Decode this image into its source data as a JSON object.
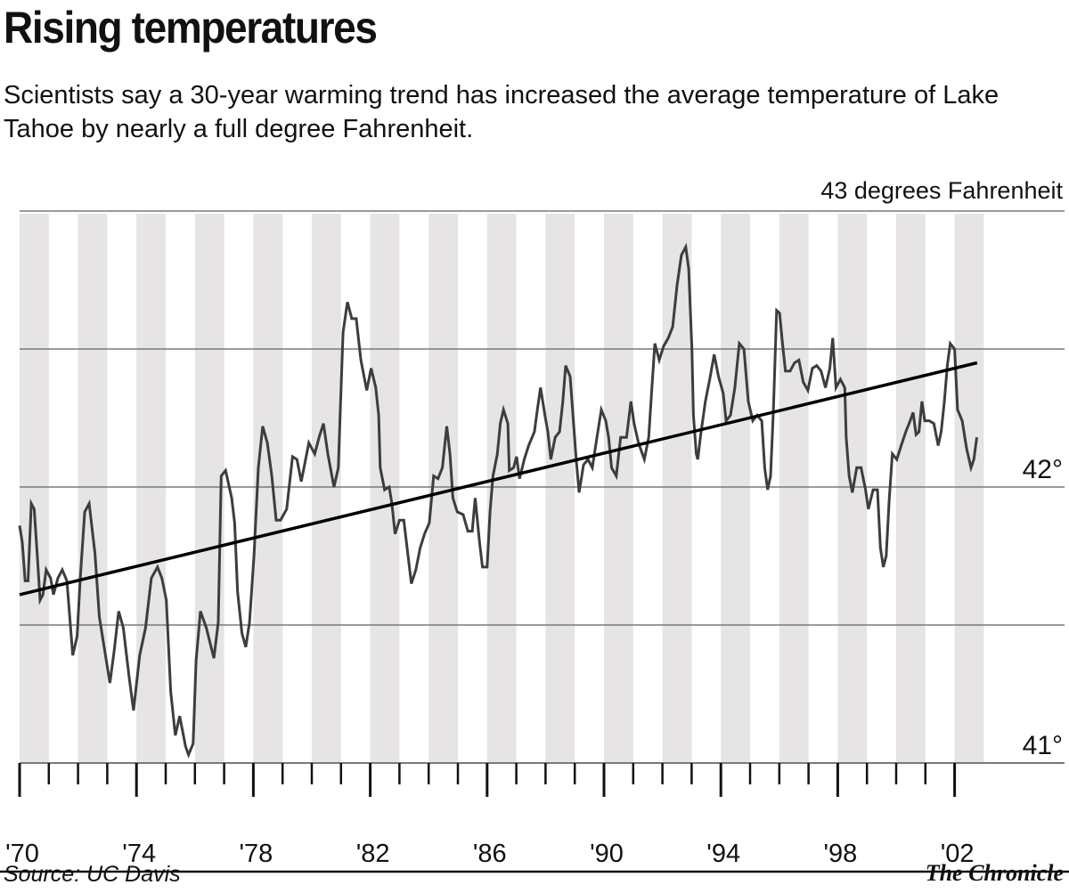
{
  "header": {
    "title": "Rising temperatures",
    "subtitle": "Scientists say a 30-year warming trend has increased the average temperature of Lake Tahoe by nearly a full degree Fahrenheit."
  },
  "footer": {
    "source": "Source: UC Davis",
    "credit": "The Chronicle"
  },
  "colors": {
    "stripe": "#e6e4e4",
    "grid": "#7a7a7a",
    "series": "#3d3d3d",
    "trend": "#000000"
  },
  "chart_data": {
    "type": "line",
    "title": "Rising temperatures",
    "ylabel": "43 degrees Fahrenheit",
    "ylim": [
      41,
      43
    ],
    "xlim": [
      1970,
      2003.1
    ],
    "y_ticks": [
      41,
      41.5,
      42,
      42.5,
      43
    ],
    "y_tick_labels": [
      {
        "value": 43,
        "label": "43 degrees Fahrenheit"
      },
      {
        "value": 42,
        "label": "42°"
      },
      {
        "value": 41,
        "label": "41°"
      }
    ],
    "x_tick_labels": [
      {
        "value": 1970,
        "label": "'70"
      },
      {
        "value": 1974,
        "label": "'74"
      },
      {
        "value": 1978,
        "label": "'78"
      },
      {
        "value": 1982,
        "label": "'82"
      },
      {
        "value": 1986,
        "label": "'86"
      },
      {
        "value": 1990,
        "label": "'90"
      },
      {
        "value": 1994,
        "label": "'94"
      },
      {
        "value": 1998,
        "label": "'98"
      },
      {
        "value": 2002,
        "label": "'02"
      }
    ],
    "minor_ticks": "yearly",
    "grid": true,
    "alternating_year_stripes": true,
    "series": [
      {
        "points": [
          [
            1970.0,
            41.86
          ],
          [
            1970.09,
            41.8
          ],
          [
            1970.19,
            41.66
          ],
          [
            1970.29,
            41.66
          ],
          [
            1970.4,
            41.94
          ],
          [
            1970.5,
            41.92
          ],
          [
            1970.6,
            41.76
          ],
          [
            1970.7,
            41.59
          ],
          [
            1970.8,
            41.61
          ],
          [
            1970.91,
            41.7
          ],
          [
            1971.06,
            41.67
          ],
          [
            1971.16,
            41.61
          ],
          [
            1971.31,
            41.67
          ],
          [
            1971.46,
            41.7
          ],
          [
            1971.62,
            41.66
          ],
          [
            1971.82,
            41.39
          ],
          [
            1971.97,
            41.46
          ],
          [
            1972.07,
            41.66
          ],
          [
            1972.23,
            41.91
          ],
          [
            1972.38,
            41.94
          ],
          [
            1972.58,
            41.76
          ],
          [
            1972.73,
            41.53
          ],
          [
            1972.94,
            41.39
          ],
          [
            1973.09,
            41.29
          ],
          [
            1973.24,
            41.41
          ],
          [
            1973.39,
            41.55
          ],
          [
            1973.55,
            41.49
          ],
          [
            1973.75,
            41.31
          ],
          [
            1973.9,
            41.19
          ],
          [
            1974.11,
            41.39
          ],
          [
            1974.31,
            41.49
          ],
          [
            1974.51,
            41.67
          ],
          [
            1974.72,
            41.71
          ],
          [
            1974.87,
            41.67
          ],
          [
            1975.02,
            41.59
          ],
          [
            1975.17,
            41.26
          ],
          [
            1975.33,
            41.1
          ],
          [
            1975.48,
            41.17
          ],
          [
            1975.68,
            41.06
          ],
          [
            1975.78,
            41.03
          ],
          [
            1975.94,
            41.07
          ],
          [
            1976.04,
            41.37
          ],
          [
            1976.19,
            41.55
          ],
          [
            1976.39,
            41.49
          ],
          [
            1976.65,
            41.38
          ],
          [
            1976.8,
            41.51
          ],
          [
            1976.9,
            42.04
          ],
          [
            1977.05,
            42.06
          ],
          [
            1977.26,
            41.96
          ],
          [
            1977.36,
            41.87
          ],
          [
            1977.46,
            41.62
          ],
          [
            1977.61,
            41.47
          ],
          [
            1977.74,
            41.42
          ],
          [
            1977.87,
            41.51
          ],
          [
            1978.02,
            41.75
          ],
          [
            1978.17,
            42.07
          ],
          [
            1978.32,
            42.22
          ],
          [
            1978.48,
            42.16
          ],
          [
            1978.63,
            42.04
          ],
          [
            1978.78,
            41.88
          ],
          [
            1978.93,
            41.88
          ],
          [
            1979.14,
            41.92
          ],
          [
            1979.34,
            42.11
          ],
          [
            1979.49,
            42.1
          ],
          [
            1979.64,
            42.02
          ],
          [
            1979.9,
            42.16
          ],
          [
            1980.1,
            42.12
          ],
          [
            1980.25,
            42.18
          ],
          [
            1980.4,
            42.23
          ],
          [
            1980.55,
            42.12
          ],
          [
            1980.76,
            42.0
          ],
          [
            1980.91,
            42.07
          ],
          [
            1980.97,
            42.26
          ],
          [
            1981.07,
            42.56
          ],
          [
            1981.22,
            42.67
          ],
          [
            1981.37,
            42.61
          ],
          [
            1981.52,
            42.61
          ],
          [
            1981.68,
            42.46
          ],
          [
            1981.88,
            42.35
          ],
          [
            1982.03,
            42.43
          ],
          [
            1982.19,
            42.36
          ],
          [
            1982.29,
            42.26
          ],
          [
            1982.34,
            42.07
          ],
          [
            1982.49,
            41.99
          ],
          [
            1982.65,
            42.0
          ],
          [
            1982.74,
            41.94
          ],
          [
            1982.85,
            41.83
          ],
          [
            1983.0,
            41.88
          ],
          [
            1983.15,
            41.88
          ],
          [
            1983.25,
            41.79
          ],
          [
            1983.41,
            41.65
          ],
          [
            1983.56,
            41.7
          ],
          [
            1983.71,
            41.78
          ],
          [
            1983.86,
            41.83
          ],
          [
            1984.02,
            41.87
          ],
          [
            1984.17,
            42.04
          ],
          [
            1984.32,
            42.03
          ],
          [
            1984.47,
            42.07
          ],
          [
            1984.62,
            42.22
          ],
          [
            1984.73,
            42.12
          ],
          [
            1984.83,
            41.96
          ],
          [
            1984.98,
            41.91
          ],
          [
            1985.18,
            41.9
          ],
          [
            1985.34,
            41.84
          ],
          [
            1985.49,
            41.84
          ],
          [
            1985.59,
            41.96
          ],
          [
            1985.74,
            41.8
          ],
          [
            1985.84,
            41.71
          ],
          [
            1986.0,
            41.71
          ],
          [
            1986.1,
            41.91
          ],
          [
            1986.2,
            42.04
          ],
          [
            1986.35,
            42.12
          ],
          [
            1986.45,
            42.23
          ],
          [
            1986.56,
            42.28
          ],
          [
            1986.71,
            42.23
          ],
          [
            1986.76,
            42.06
          ],
          [
            1986.91,
            42.07
          ],
          [
            1987.01,
            42.11
          ],
          [
            1987.11,
            42.03
          ],
          [
            1987.27,
            42.1
          ],
          [
            1987.42,
            42.15
          ],
          [
            1987.62,
            42.2
          ],
          [
            1987.72,
            42.28
          ],
          [
            1987.83,
            42.36
          ],
          [
            1987.98,
            42.26
          ],
          [
            1988.08,
            42.2
          ],
          [
            1988.18,
            42.1
          ],
          [
            1988.33,
            42.18
          ],
          [
            1988.48,
            42.2
          ],
          [
            1988.59,
            42.31
          ],
          [
            1988.69,
            42.44
          ],
          [
            1988.84,
            42.4
          ],
          [
            1988.94,
            42.26
          ],
          [
            1989.05,
            42.1
          ],
          [
            1989.15,
            41.98
          ],
          [
            1989.3,
            42.08
          ],
          [
            1989.45,
            42.1
          ],
          [
            1989.6,
            42.07
          ],
          [
            1989.76,
            42.18
          ],
          [
            1989.91,
            42.28
          ],
          [
            1990.06,
            42.24
          ],
          [
            1990.16,
            42.18
          ],
          [
            1990.26,
            42.07
          ],
          [
            1990.42,
            42.04
          ],
          [
            1990.57,
            42.18
          ],
          [
            1990.77,
            42.18
          ],
          [
            1990.92,
            42.31
          ],
          [
            1991.03,
            42.23
          ],
          [
            1991.18,
            42.16
          ],
          [
            1991.38,
            42.1
          ],
          [
            1991.53,
            42.18
          ],
          [
            1991.64,
            42.36
          ],
          [
            1991.74,
            42.52
          ],
          [
            1991.89,
            42.46
          ],
          [
            1992.04,
            42.51
          ],
          [
            1992.2,
            42.54
          ],
          [
            1992.35,
            42.58
          ],
          [
            1992.5,
            42.73
          ],
          [
            1992.65,
            42.84
          ],
          [
            1992.8,
            42.87
          ],
          [
            1992.9,
            42.79
          ],
          [
            1993.01,
            42.5
          ],
          [
            1993.06,
            42.26
          ],
          [
            1993.16,
            42.12
          ],
          [
            1993.21,
            42.1
          ],
          [
            1993.31,
            42.19
          ],
          [
            1993.47,
            42.31
          ],
          [
            1993.62,
            42.39
          ],
          [
            1993.77,
            42.48
          ],
          [
            1993.92,
            42.4
          ],
          [
            1994.08,
            42.34
          ],
          [
            1994.18,
            42.24
          ],
          [
            1994.33,
            42.26
          ],
          [
            1994.48,
            42.36
          ],
          [
            1994.63,
            42.52
          ],
          [
            1994.79,
            42.5
          ],
          [
            1994.94,
            42.31
          ],
          [
            1995.09,
            42.24
          ],
          [
            1995.24,
            42.26
          ],
          [
            1995.4,
            42.24
          ],
          [
            1995.5,
            42.07
          ],
          [
            1995.6,
            41.99
          ],
          [
            1995.7,
            42.04
          ],
          [
            1995.8,
            42.28
          ],
          [
            1995.91,
            42.64
          ],
          [
            1996.01,
            42.63
          ],
          [
            1996.11,
            42.52
          ],
          [
            1996.21,
            42.42
          ],
          [
            1996.37,
            42.42
          ],
          [
            1996.52,
            42.45
          ],
          [
            1996.67,
            42.46
          ],
          [
            1996.82,
            42.38
          ],
          [
            1996.98,
            42.35
          ],
          [
            1997.13,
            42.43
          ],
          [
            1997.28,
            42.44
          ],
          [
            1997.43,
            42.42
          ],
          [
            1997.58,
            42.36
          ],
          [
            1997.73,
            42.43
          ],
          [
            1997.83,
            42.54
          ],
          [
            1997.94,
            42.36
          ],
          [
            1998.09,
            42.39
          ],
          [
            1998.24,
            42.36
          ],
          [
            1998.29,
            42.18
          ],
          [
            1998.39,
            42.04
          ],
          [
            1998.5,
            41.98
          ],
          [
            1998.65,
            42.07
          ],
          [
            1998.8,
            42.07
          ],
          [
            1998.95,
            41.99
          ],
          [
            1999.05,
            41.92
          ],
          [
            1999.21,
            41.99
          ],
          [
            1999.36,
            41.99
          ],
          [
            1999.46,
            41.78
          ],
          [
            1999.56,
            41.71
          ],
          [
            1999.66,
            41.75
          ],
          [
            1999.76,
            41.95
          ],
          [
            1999.87,
            42.12
          ],
          [
            2000.02,
            42.1
          ],
          [
            2000.17,
            42.15
          ],
          [
            2000.33,
            42.2
          ],
          [
            2000.48,
            42.24
          ],
          [
            2000.58,
            42.27
          ],
          [
            2000.68,
            42.19
          ],
          [
            2000.78,
            42.2
          ],
          [
            2000.88,
            42.31
          ],
          [
            2000.98,
            42.24
          ],
          [
            2001.13,
            42.24
          ],
          [
            2001.29,
            42.23
          ],
          [
            2001.44,
            42.15
          ],
          [
            2001.54,
            42.2
          ],
          [
            2001.65,
            42.31
          ],
          [
            2001.75,
            42.44
          ],
          [
            2001.85,
            42.52
          ],
          [
            2002.0,
            42.5
          ],
          [
            2002.1,
            42.28
          ],
          [
            2002.26,
            42.24
          ],
          [
            2002.41,
            42.14
          ],
          [
            2002.56,
            42.07
          ],
          [
            2002.66,
            42.1
          ],
          [
            2002.76,
            42.18
          ]
        ]
      }
    ],
    "trend_line": {
      "start": [
        1970.0,
        41.61
      ],
      "end": [
        2002.77,
        42.45
      ]
    }
  }
}
